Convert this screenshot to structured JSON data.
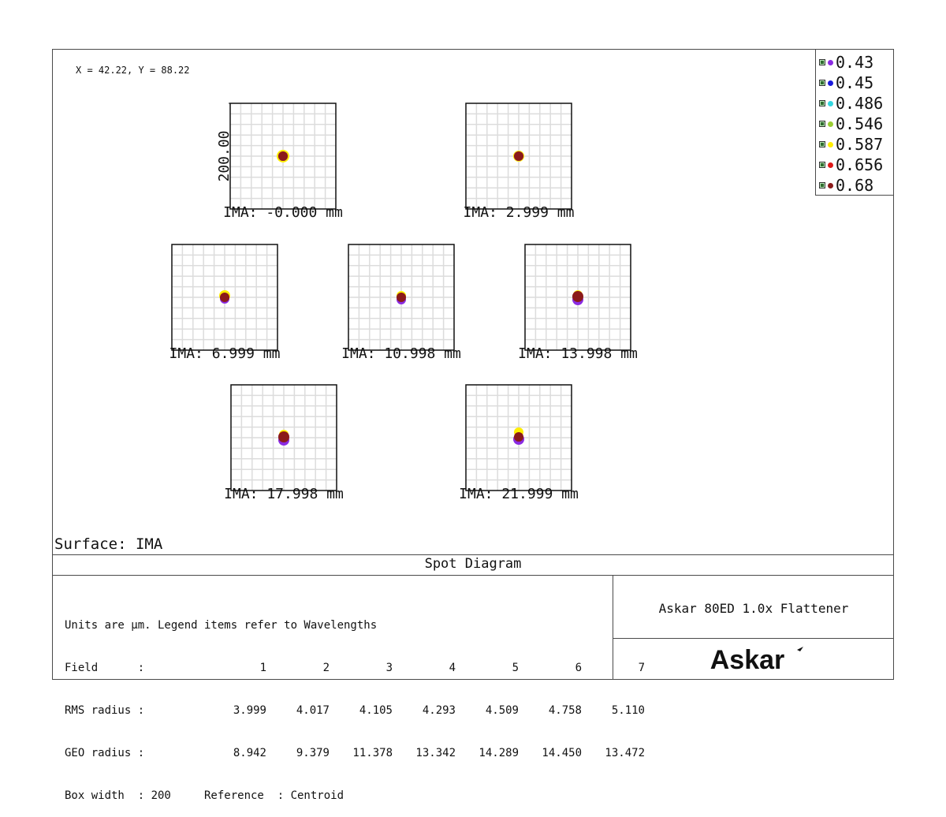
{
  "cursor_readout": "X = 42.22, Y = 88.22",
  "surface_label": "Surface: IMA",
  "panel_title": "Spot Diagram",
  "lens_name": "Askar 80ED 1.0x Flattener",
  "logo_text": "Askar",
  "info": {
    "units_line": "Units are µm. Legend items refer to Wavelengths",
    "field_label": "Field      :",
    "fields": [
      "1",
      "2",
      "3",
      "4",
      "5",
      "6",
      "7"
    ],
    "rms_label": "RMS radius :",
    "rms": [
      "3.999",
      "4.017",
      "4.105",
      "4.293",
      "4.509",
      "4.758",
      "5.110"
    ],
    "geo_label": "GEO radius :",
    "geo": [
      "8.942",
      "9.379",
      "11.378",
      "13.342",
      "14.289",
      "14.450",
      "13.472"
    ],
    "box_line": "Box width  : 200     Reference  : Centroid"
  },
  "chart_data": {
    "type": "scatter",
    "title": "Spot Diagram",
    "box_width_um": 200,
    "scale_label": "200.00",
    "grid": true,
    "legend_placement": "top-right",
    "legend": [
      {
        "label": "0.43",
        "color": "#8a2be2"
      },
      {
        "label": "0.45",
        "color": "#1a1adc"
      },
      {
        "label": "0.486",
        "color": "#33d6e0"
      },
      {
        "label": "0.546",
        "color": "#9acd32"
      },
      {
        "label": "0.587",
        "color": "#ffee00"
      },
      {
        "label": "0.656",
        "color": "#e01818"
      },
      {
        "label": "0.68",
        "color": "#8b1a1a"
      }
    ],
    "fields": [
      {
        "label": "IMA: -0.000 mm",
        "spots": [
          {
            "color": "#ffee00",
            "dx": 0,
            "dy": 0,
            "r": 8
          },
          {
            "color": "#8a2be2",
            "dx": 0,
            "dy": 0,
            "r": 6
          },
          {
            "color": "#8b1a1a",
            "dx": 0,
            "dy": 0,
            "r": 6
          }
        ]
      },
      {
        "label": "IMA: 2.999 mm",
        "spots": [
          {
            "color": "#ffee00",
            "dx": 0,
            "dy": 0,
            "r": 7
          },
          {
            "color": "#8a2be2",
            "dx": 0,
            "dy": 0,
            "r": 6
          },
          {
            "color": "#8b1a1a",
            "dx": 0,
            "dy": 0,
            "r": 6
          }
        ]
      },
      {
        "label": "IMA: 6.999 mm",
        "spots": [
          {
            "color": "#ffee00",
            "dx": 0,
            "dy": -2,
            "r": 7
          },
          {
            "color": "#8a2be2",
            "dx": 0,
            "dy": 2,
            "r": 6
          },
          {
            "color": "#8b1a1a",
            "dx": 0,
            "dy": 0,
            "r": 6
          }
        ]
      },
      {
        "label": "IMA: 10.998 mm",
        "spots": [
          {
            "color": "#ffee00",
            "dx": 0,
            "dy": -2,
            "r": 6
          },
          {
            "color": "#8a2be2",
            "dx": 0,
            "dy": 3,
            "r": 6
          },
          {
            "color": "#8b1a1a",
            "dx": 0,
            "dy": 0,
            "r": 6
          }
        ]
      },
      {
        "label": "IMA: 13.998 mm",
        "spots": [
          {
            "color": "#ffee00",
            "dx": 0,
            "dy": -3,
            "r": 6
          },
          {
            "color": "#8a2be2",
            "dx": 0,
            "dy": 3,
            "r": 7
          },
          {
            "color": "#8b1a1a",
            "dx": 0,
            "dy": -1,
            "r": 7
          }
        ]
      },
      {
        "label": "IMA: 17.998 mm",
        "spots": [
          {
            "color": "#ffee00",
            "dx": 0,
            "dy": -4,
            "r": 6
          },
          {
            "color": "#8a2be2",
            "dx": 0,
            "dy": 3,
            "r": 7
          },
          {
            "color": "#8b1a1a",
            "dx": 0,
            "dy": -1,
            "r": 7
          }
        ]
      },
      {
        "label": "IMA: 21.999 mm",
        "spots": [
          {
            "color": "#ffee00",
            "dx": 0,
            "dy": -7,
            "r": 6
          },
          {
            "color": "#8a2be2",
            "dx": 0,
            "dy": 2,
            "r": 7
          },
          {
            "color": "#8b1a1a",
            "dx": 0,
            "dy": -1,
            "r": 6
          }
        ]
      }
    ]
  }
}
